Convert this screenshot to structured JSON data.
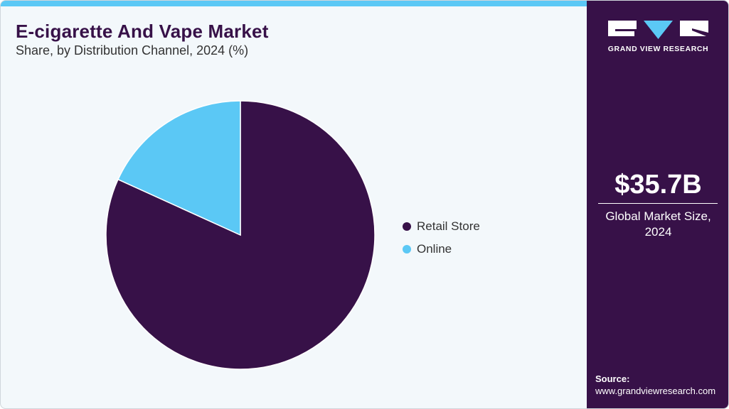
{
  "header": {
    "title": "E-cigarette And Vape Market",
    "subtitle": "Share, by Distribution Channel, 2024 (%)"
  },
  "colors": {
    "accent_bar": "#5bc8f5",
    "sidebar_bg": "#371148",
    "retail_store": "#371148",
    "online": "#5bc8f5",
    "background": "#f3f8fb"
  },
  "chart_data": {
    "type": "pie",
    "title": "E-cigarette And Vape Market",
    "subtitle": "Share, by Distribution Channel, 2024 (%)",
    "categories": [
      "Retail Store",
      "Online"
    ],
    "values": [
      81.8,
      18.2
    ],
    "colors": [
      "#371148",
      "#5bc8f5"
    ],
    "start_angle": "12 o'clock",
    "direction": "clockwise",
    "legend_position": "right",
    "data_labels": false
  },
  "legend": {
    "items": [
      {
        "label": "Retail Store",
        "color": "#371148"
      },
      {
        "label": "Online",
        "color": "#5bc8f5"
      }
    ]
  },
  "sidebar": {
    "logo_text": "GRAND VIEW RESEARCH",
    "market_value": "$35.7B",
    "market_label_line1": "Global Market Size,",
    "market_label_line2": "2024",
    "source_label": "Source:",
    "source_url": "www.grandviewresearch.com"
  }
}
